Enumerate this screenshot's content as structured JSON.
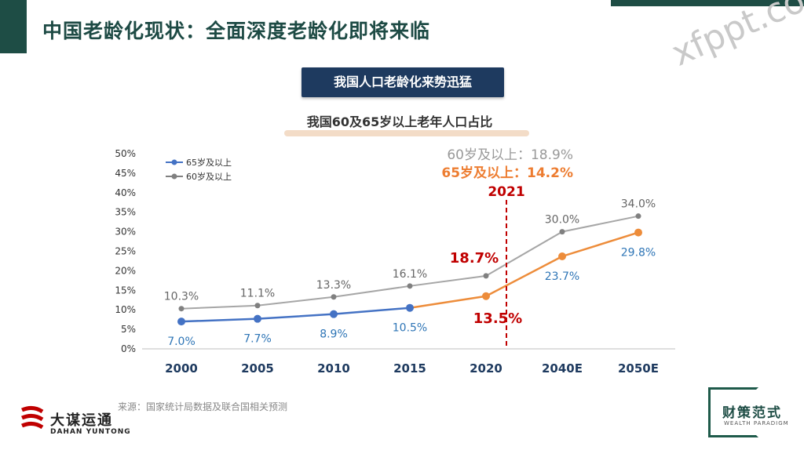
{
  "header": {
    "title": "中国老龄化现状：全面深度老龄化即将来临",
    "watermark": "xfppt.com"
  },
  "banner": {
    "title": "我国人口老龄化来势迅猛",
    "subtitle": "我国60及65岁以上老年人口占比"
  },
  "chart_data": {
    "type": "line",
    "categories": [
      "2000",
      "2005",
      "2010",
      "2015",
      "2020",
      "2040E",
      "2050E"
    ],
    "y_ticks": [
      "0%",
      "5%",
      "10%",
      "15%",
      "20%",
      "25%",
      "30%",
      "35%",
      "40%",
      "45%",
      "50%"
    ],
    "ylim": [
      0,
      50
    ],
    "series": [
      {
        "name": "65岁及以上",
        "values": [
          7.0,
          7.7,
          8.9,
          10.5,
          13.5,
          23.7,
          29.8
        ],
        "labels": [
          "7.0%",
          "7.7%",
          "8.9%",
          "10.5%",
          "13.5%",
          "23.7%",
          "29.8%"
        ],
        "color": "#4472c4",
        "projection_color": "#ed8c3a",
        "label_color": "#2e75b6"
      },
      {
        "name": "60岁及以上",
        "values": [
          10.3,
          11.1,
          13.3,
          16.1,
          18.7,
          30.0,
          34.0
        ],
        "labels": [
          "10.3%",
          "11.1%",
          "13.3%",
          "16.1%",
          "18.7%",
          "30.0%",
          "34.0%"
        ],
        "color": "#a6a6a6",
        "marker_color": "#808080",
        "label_color": "#666666"
      }
    ],
    "highlight_color": "#c00000",
    "marker_year": "2021",
    "annotations": {
      "a60": "60岁及以上：18.9%",
      "a65": "65岁及以上：14.2%"
    },
    "colors": {
      "a60": "#999999",
      "a65": "#ed7d31"
    }
  },
  "footer": {
    "source": "来源：国家统计局数据及联合国相关预测",
    "logo_left_name": "大谋运通",
    "logo_left_en": "DAHAN YUNTONG",
    "logo_right_name": "财策范式",
    "logo_right_en": "WEALTH PARADIGM"
  }
}
